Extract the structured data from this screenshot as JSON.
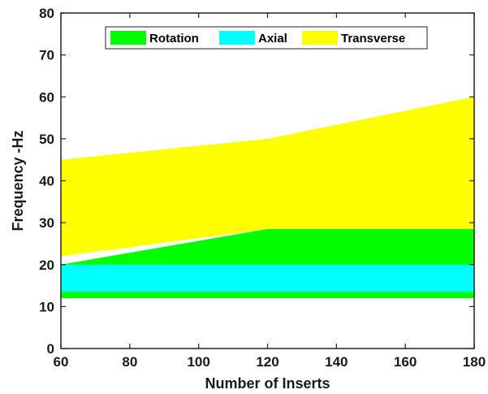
{
  "chart_data": {
    "type": "area",
    "xlabel": "Number of Inserts",
    "ylabel": "Frequency -Hz",
    "xlim": [
      60,
      180
    ],
    "ylim": [
      0,
      80
    ],
    "xticks": [
      60,
      80,
      100,
      120,
      140,
      160,
      180
    ],
    "yticks": [
      0,
      10,
      20,
      30,
      40,
      50,
      60,
      70,
      80
    ],
    "grid": false,
    "legend_position": "top",
    "legend_orientation": "horizontal",
    "legend": [
      {
        "label": "Rotation",
        "color": "#00ff00"
      },
      {
        "label": "Axial",
        "color": "#00ffff"
      },
      {
        "label": "Transverse",
        "color": "#ffff00"
      }
    ],
    "series": [
      {
        "name": "Transverse",
        "color": "#ffff00",
        "x": [
          60,
          120,
          180
        ],
        "lower": [
          22,
          28.5,
          28.5
        ],
        "upper": [
          45,
          50,
          60
        ]
      },
      {
        "name": "Rotation",
        "color": "#00ff00",
        "x": [
          60,
          120,
          180
        ],
        "lower": [
          12,
          12,
          12
        ],
        "upper": [
          20,
          28.5,
          28.5
        ]
      },
      {
        "name": "Axial",
        "color": "#00ffff",
        "x": [
          60,
          120,
          180
        ],
        "lower": [
          13.5,
          13.5,
          13.5
        ],
        "upper": [
          20,
          20,
          20
        ]
      }
    ]
  }
}
